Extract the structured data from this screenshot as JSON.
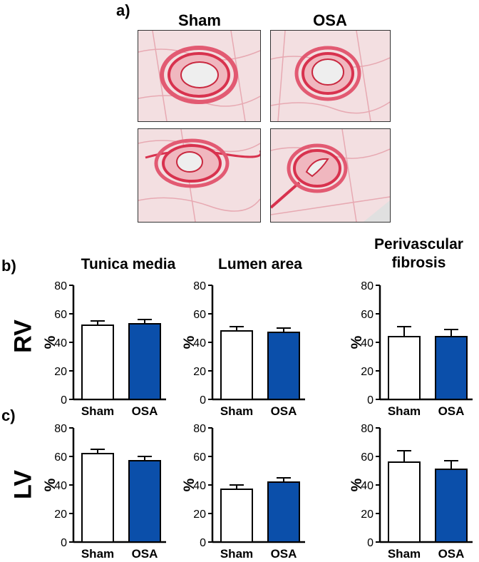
{
  "figure": {
    "panel_a_label": "a)",
    "panel_b_label": "b)",
    "panel_c_label": "c)",
    "col_sham": "Sham",
    "col_osa": "OSA",
    "row_rv": "RV",
    "row_lv": "LV"
  },
  "colors": {
    "sham_fill": "#ffffff",
    "osa_fill": "#0b4faa",
    "stain": "#d8324e",
    "tissue_bg": "#f2d9dc"
  },
  "chart_data": [
    {
      "type": "bar",
      "title": "Tunica media",
      "row": "RV",
      "ylabel": "%",
      "categories": [
        "Sham",
        "OSA"
      ],
      "values": [
        52,
        53
      ],
      "errors": [
        3,
        3
      ],
      "ylim": [
        0,
        80
      ],
      "yticks": [
        "0",
        "20",
        "40",
        "60",
        "80"
      ],
      "grid": false
    },
    {
      "type": "bar",
      "title": "Lumen area",
      "row": "RV",
      "ylabel": "%",
      "categories": [
        "Sham",
        "OSA"
      ],
      "values": [
        48,
        47
      ],
      "errors": [
        3,
        3
      ],
      "ylim": [
        0,
        80
      ],
      "yticks": [
        "0",
        "20",
        "40",
        "60",
        "80"
      ],
      "grid": false
    },
    {
      "type": "bar",
      "title": "Perivascular fibrosis",
      "row": "RV",
      "ylabel": "%",
      "categories": [
        "Sham",
        "OSA"
      ],
      "values": [
        44,
        44
      ],
      "errors": [
        7,
        5
      ],
      "ylim": [
        0,
        80
      ],
      "yticks": [
        "0",
        "20",
        "40",
        "60",
        "80"
      ],
      "grid": false
    },
    {
      "type": "bar",
      "title": "",
      "row": "LV",
      "ylabel": "%",
      "categories": [
        "Sham",
        "OSA"
      ],
      "values": [
        62,
        57
      ],
      "errors": [
        3,
        3
      ],
      "ylim": [
        0,
        80
      ],
      "yticks": [
        "0",
        "20",
        "40",
        "60",
        "80"
      ],
      "grid": false
    },
    {
      "type": "bar",
      "title": "",
      "row": "LV",
      "ylabel": "%",
      "categories": [
        "Sham",
        "OSA"
      ],
      "values": [
        37,
        42
      ],
      "errors": [
        3,
        3
      ],
      "ylim": [
        0,
        80
      ],
      "yticks": [
        "0",
        "20",
        "40",
        "60",
        "80"
      ],
      "grid": false
    },
    {
      "type": "bar",
      "title": "",
      "row": "LV",
      "ylabel": "%",
      "categories": [
        "Sham",
        "OSA"
      ],
      "values": [
        56,
        51
      ],
      "errors": [
        8,
        6
      ],
      "ylim": [
        0,
        80
      ],
      "yticks": [
        "0",
        "20",
        "40",
        "60",
        "80"
      ],
      "grid": false
    }
  ]
}
